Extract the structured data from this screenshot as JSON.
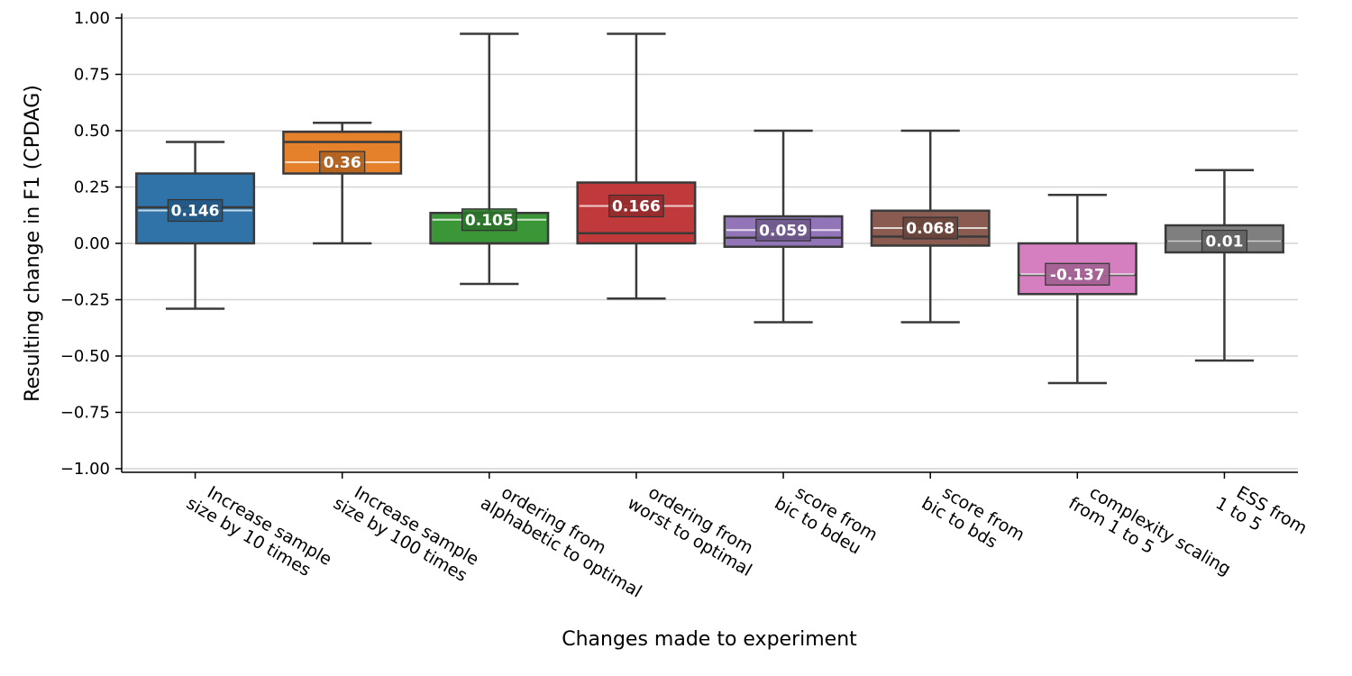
{
  "chart_data": {
    "type": "box",
    "xlabel": "Changes made to experiment",
    "ylabel": "Resulting change in F1 (CPDAG)",
    "ylim": [
      -1.0,
      1.0
    ],
    "yticks": [
      "1.00",
      "0.75",
      "0.50",
      "0.25",
      "0.00",
      "−0.25",
      "−0.50",
      "−0.75",
      "−1.00"
    ],
    "ytick_values": [
      1.0,
      0.75,
      0.5,
      0.25,
      0.0,
      -0.25,
      -0.5,
      -0.75,
      -1.0
    ],
    "grid": "horizontal",
    "categories": [
      {
        "lines": [
          "Increase sample",
          "size by 10 times"
        ],
        "color": "#2f73a8",
        "whisker_low": -0.29,
        "q1": 0.0,
        "median": 0.16,
        "q3": 0.31,
        "whisker_high": 0.45,
        "mean_label": "0.146",
        "mean": 0.146
      },
      {
        "lines": [
          "Increase sample",
          "size by 100 times"
        ],
        "color": "#e5812a",
        "whisker_low": 0.0,
        "q1": 0.31,
        "median": 0.45,
        "q3": 0.495,
        "whisker_high": 0.535,
        "mean_label": "0.36",
        "mean": 0.36
      },
      {
        "lines": [
          "ordering from",
          "alphabetic to optimal"
        ],
        "color": "#3a9637",
        "whisker_low": -0.18,
        "q1": 0.0,
        "median": 0.0,
        "q3": 0.135,
        "whisker_high": 0.93,
        "mean_label": "0.105",
        "mean": 0.105
      },
      {
        "lines": [
          "ordering from",
          "worst to optimal"
        ],
        "color": "#c13a3b",
        "whisker_low": -0.245,
        "q1": 0.0,
        "median": 0.045,
        "q3": 0.27,
        "whisker_high": 0.93,
        "mean_label": "0.166",
        "mean": 0.166
      },
      {
        "lines": [
          "score from",
          "bic to bdeu"
        ],
        "color": "#9175b8",
        "whisker_low": -0.35,
        "q1": -0.015,
        "median": 0.025,
        "q3": 0.12,
        "whisker_high": 0.5,
        "mean_label": "0.059",
        "mean": 0.059
      },
      {
        "lines": [
          "score from",
          "bic to bds"
        ],
        "color": "#8a5b50",
        "whisker_low": -0.35,
        "q1": -0.01,
        "median": 0.03,
        "q3": 0.145,
        "whisker_high": 0.5,
        "mean_label": "0.068",
        "mean": 0.068
      },
      {
        "lines": [
          "complexity scaling",
          "from 1 to 5"
        ],
        "color": "#d57fc0",
        "whisker_low": -0.62,
        "q1": -0.225,
        "median": -0.14,
        "q3": 0.0,
        "whisker_high": 0.215,
        "mean_label": "-0.137",
        "mean": -0.137
      },
      {
        "lines": [
          "ESS from",
          "1 to 5"
        ],
        "color": "#7f7f7f",
        "whisker_low": -0.52,
        "q1": -0.04,
        "median": 0.01,
        "q3": 0.08,
        "whisker_high": 0.325,
        "mean_label": "0.01",
        "mean": 0.01
      }
    ]
  }
}
